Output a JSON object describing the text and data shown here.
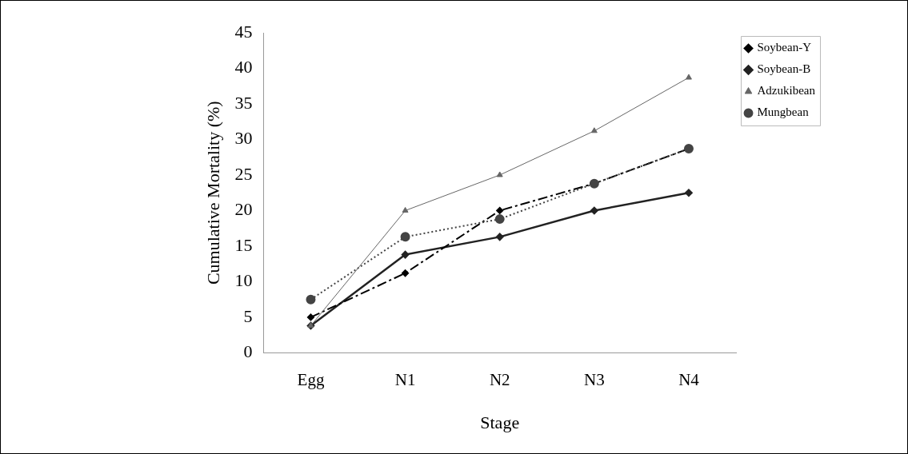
{
  "chart_data": {
    "type": "line",
    "xlabel": "Stage",
    "ylabel": "Cumulative Mortality (%)",
    "categories": [
      "Egg",
      "N1",
      "N2",
      "N3",
      "N4"
    ],
    "series": [
      {
        "name": "Soybean-Y",
        "color": "#000000",
        "values": [
          5,
          11.2,
          20,
          23.8,
          28.7
        ],
        "marker": "diamond",
        "line_style": "dashed"
      },
      {
        "name": "Soybean-B",
        "color": "#222222",
        "values": [
          3.8,
          13.8,
          16.3,
          20,
          22.5
        ],
        "marker": "diamond",
        "line_style": "solid"
      },
      {
        "name": "Adzukibean",
        "color": "#666666",
        "values": [
          3.8,
          20,
          25,
          31.2,
          38.7
        ],
        "marker": "triangle",
        "line_style": "solid"
      },
      {
        "name": "Mungbean",
        "color": "#444444",
        "values": [
          7.5,
          16.3,
          18.8,
          23.8,
          28.7
        ],
        "marker": "circle",
        "line_style": "dotted"
      }
    ],
    "ylim": [
      0,
      45
    ],
    "yticks": [
      0,
      5,
      10,
      15,
      20,
      25,
      30,
      35,
      40,
      45
    ],
    "grid": false,
    "legend": "top right"
  }
}
